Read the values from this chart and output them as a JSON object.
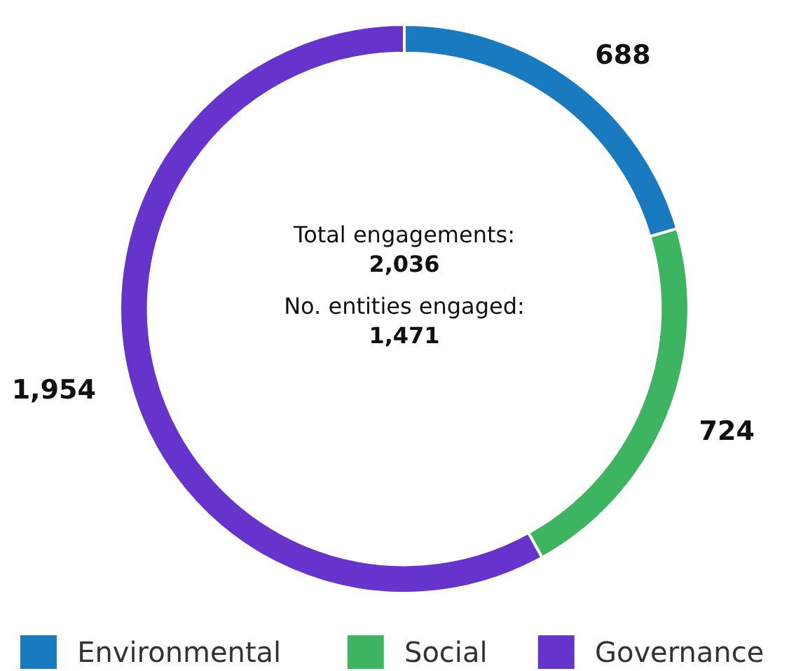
{
  "chart_data": {
    "type": "donut",
    "categories": [
      "Environmental",
      "Social",
      "Governance"
    ],
    "values": [
      688,
      724,
      1954
    ],
    "colors": [
      "#1a7abf",
      "#3db560",
      "#6633cc"
    ],
    "value_labels": [
      "688",
      "724",
      "1,954"
    ],
    "annotations": [
      "Total engagements:",
      "2,036",
      "No. entities engaged:",
      "1,471"
    ],
    "legend": "bottom"
  }
}
